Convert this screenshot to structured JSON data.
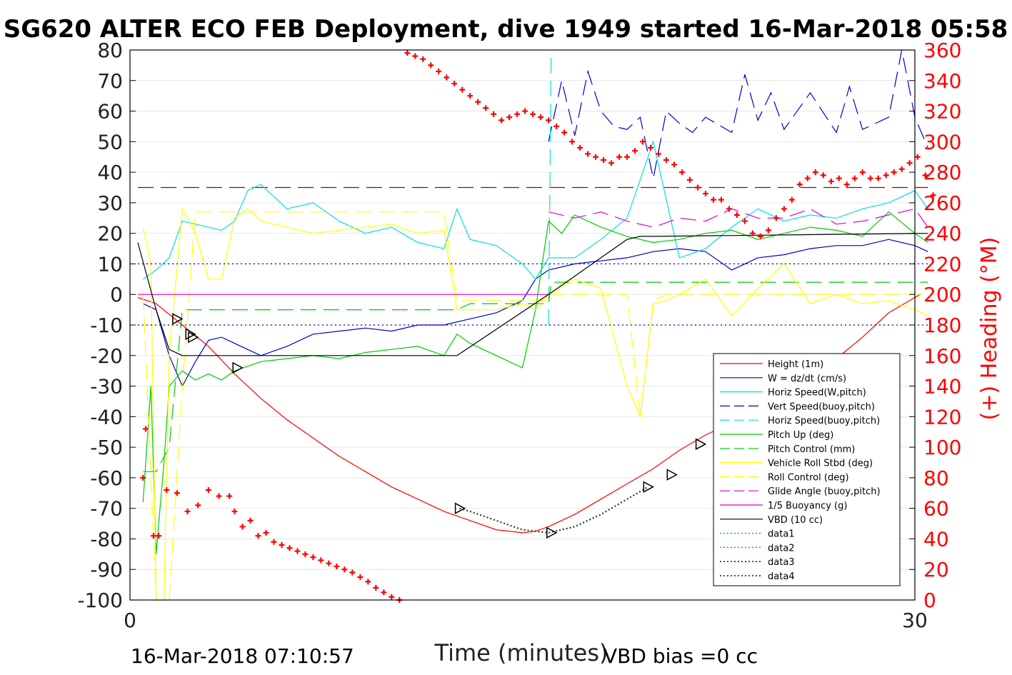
{
  "chart_data": {
    "type": "line",
    "title": "SG620 ALTER ECO FEB Deployment, dive 1949 started 16-Mar-2018 05:58",
    "xlabel": "Time (minutes)",
    "ylabel_right": "(+) Heading (°M)",
    "xlim": [
      0,
      30
    ],
    "ylim_left": [
      -100,
      80
    ],
    "ylim_right": [
      0,
      360
    ],
    "x_ticks": [
      "0",
      "30"
    ],
    "y_ticks_left": [
      "80",
      "70",
      "60",
      "50",
      "40",
      "30",
      "20",
      "10",
      "0",
      "-10",
      "-20",
      "-30",
      "-40",
      "-50",
      "-60",
      "-70",
      "-80",
      "-90",
      "-100"
    ],
    "y_ticks_right": [
      "360",
      "340",
      "320",
      "300",
      "280",
      "260",
      "240",
      "220",
      "200",
      "180",
      "160",
      "140",
      "120",
      "100",
      "80",
      "60",
      "40",
      "20",
      "0"
    ],
    "grid": true,
    "legend_position": "lower-right",
    "footer_left": "16-Mar-2018 07:10:57",
    "footer_right": "VBD bias =0 cc",
    "colors": {
      "height": "#ff0000",
      "w": "#0000cc",
      "horiz": "#00e0e0",
      "vert_buoy": "#0000cc",
      "horiz_buoy": "#00e0e0",
      "pitch": "#00cc00",
      "pitch_ctrl": "#00cc00",
      "roll": "#ffff00",
      "roll_ctrl": "#ffff00",
      "glide": "#dd00dd",
      "buoy": "#dd00dd",
      "vbd": "#000000",
      "heading": "#ff0000",
      "ref_dashed": "#a00000"
    },
    "series": [
      {
        "name": "Height (1m)",
        "style": "solid",
        "color": "#ff0000",
        "x": [
          0.3,
          1,
          2,
          3,
          4,
          5,
          6,
          7,
          8,
          9,
          10,
          11,
          12,
          13,
          14,
          15,
          15.5,
          16,
          17,
          18,
          19,
          20,
          21,
          22,
          23,
          24,
          25,
          26,
          27,
          28,
          29,
          30.2
        ],
        "y": [
          -1,
          -3,
          -10,
          -17,
          -26,
          -34,
          -41,
          -47,
          -53,
          -58,
          -63,
          -67,
          -71,
          -74,
          -77,
          -78,
          -77.5,
          -76,
          -72,
          -67,
          -62,
          -57,
          -51,
          -46,
          -42,
          -39,
          -34,
          -28,
          -21,
          -14,
          -6,
          0
        ]
      },
      {
        "name": "W = dz/dt (cm/s)",
        "style": "solid",
        "color": "#0000cc",
        "x": [
          0.5,
          1,
          1.5,
          2,
          2.5,
          3,
          3.5,
          4,
          5,
          6,
          7,
          8,
          9,
          10,
          11,
          12,
          13,
          14,
          15,
          15.5,
          16,
          17,
          18,
          19,
          20,
          21,
          22,
          23,
          24,
          25,
          26,
          27,
          28,
          29,
          30,
          30.5
        ],
        "y": [
          -3,
          -5,
          -20,
          -30,
          -22,
          -15,
          -14,
          -16,
          -20,
          -17,
          -13,
          -12,
          -11,
          -12,
          -10,
          -10,
          -8,
          -6,
          -2,
          5,
          8,
          10,
          11,
          12,
          14,
          15,
          14,
          8,
          12,
          13,
          15,
          16,
          16,
          18,
          16,
          14
        ]
      },
      {
        "name": "Horiz Speed(W,pitch)",
        "style": "solid",
        "color": "#00e0e0",
        "x": [
          0.5,
          1,
          1.5,
          2,
          2.5,
          3,
          3.5,
          4,
          4.5,
          5,
          6,
          7,
          8,
          9,
          10,
          11,
          12,
          12.5,
          13,
          14,
          15,
          15.5,
          16,
          17,
          18,
          19,
          20,
          21,
          22,
          23,
          24,
          25,
          26,
          27,
          28,
          29,
          30,
          30.5
        ],
        "y": [
          5,
          8,
          12,
          24,
          23,
          22,
          21,
          24,
          34,
          36,
          28,
          30,
          24,
          20,
          22,
          17,
          15,
          28,
          18,
          16,
          10,
          5,
          12,
          12,
          18,
          25,
          50,
          12,
          15,
          22,
          28,
          24,
          26,
          25,
          28,
          30,
          34,
          28
        ]
      },
      {
        "name": "Vert Speed(buoy,pitch)",
        "style": "dashed",
        "color": "#0000cc",
        "x": [
          16,
          16.5,
          17,
          17.5,
          18,
          18.5,
          19,
          19.5,
          20,
          20.5,
          21,
          21.5,
          22,
          23,
          23.5,
          24,
          24.5,
          25,
          26,
          27,
          27.5,
          28,
          29,
          29.5,
          30,
          30.5
        ],
        "y": [
          50,
          70,
          52,
          73,
          60,
          55,
          54,
          58,
          38,
          60,
          56,
          53,
          58,
          53,
          72,
          57,
          66,
          54,
          66,
          53,
          68,
          54,
          58,
          80,
          58,
          48
        ]
      },
      {
        "name": "Horiz Speed(buoy,pitch)",
        "style": "dashed",
        "color": "#00e0e0",
        "x": [
          16,
          16.1
        ],
        "y": [
          -10,
          80
        ]
      },
      {
        "name": "Pitch Up (deg)",
        "style": "solid",
        "color": "#00cc00",
        "x": [
          0.5,
          0.8,
          1,
          1.3,
          1.5,
          2,
          2.5,
          3,
          3.5,
          4,
          5,
          6,
          7,
          8,
          9,
          10,
          11,
          12,
          12.5,
          13,
          14,
          15,
          15.5,
          16,
          16.5,
          17,
          18,
          19,
          20,
          21,
          22,
          23,
          24,
          25,
          26,
          27,
          28,
          29,
          30,
          30.5
        ],
        "y": [
          -68,
          -30,
          -85,
          -55,
          -30,
          -25,
          -28,
          -26,
          -28,
          -25,
          -22,
          -21,
          -20,
          -21,
          -19,
          -18,
          -17,
          -20,
          -13,
          -16,
          -20,
          -24,
          -5,
          24,
          20,
          26,
          22,
          19,
          17,
          18,
          20,
          21,
          18,
          20,
          22,
          21,
          19,
          27,
          20,
          17
        ]
      },
      {
        "name": "Pitch Control (mm)",
        "style": "dashed",
        "color": "#00cc00",
        "x": [
          0.5,
          1,
          1.5,
          2,
          12.5,
          13,
          15.5,
          16,
          16.1,
          30.5
        ],
        "y": [
          -58,
          -58,
          -50,
          -5,
          -5,
          -3,
          -3,
          -3,
          4,
          4
        ]
      },
      {
        "name": "Vehicle Roll Stbd (deg)",
        "style": "solid",
        "color": "#ffff00",
        "x": [
          0.5,
          0.8,
          1,
          1.3,
          1.5,
          2,
          2.5,
          3,
          3.5,
          4,
          4.5,
          5,
          6,
          7,
          8,
          9,
          10,
          11,
          12,
          12.5,
          13,
          14,
          15,
          15.5,
          16,
          17,
          18,
          19,
          19.5,
          20,
          20.5,
          21,
          22,
          23,
          24,
          25,
          26,
          27,
          28,
          29,
          30,
          30.5
        ],
        "y": [
          22,
          10,
          -100,
          -100,
          -20,
          28,
          20,
          5,
          5,
          25,
          28,
          24,
          22,
          20,
          21,
          22,
          23,
          20,
          21,
          -5,
          -5,
          -5,
          -3,
          -5,
          0,
          5,
          2,
          -30,
          -40,
          -3,
          -2,
          0,
          5,
          -7,
          2,
          10,
          -3,
          0,
          -3,
          -2,
          -5,
          -7
        ]
      },
      {
        "name": "Roll Control (deg)",
        "style": "dashed",
        "color": "#ffff00",
        "x": [
          0.5,
          1,
          1.5,
          2,
          2.5,
          3,
          12,
          12.5,
          16,
          16.1,
          19,
          19.5,
          20,
          20.5,
          22,
          23,
          30.5
        ],
        "y": [
          0,
          -100,
          -100,
          -30,
          27,
          27,
          27,
          -2,
          -2,
          0,
          0,
          -40,
          -2,
          0,
          0,
          0,
          0
        ]
      },
      {
        "name": "Glide Angle (buoy,pitch)",
        "style": "dashed",
        "color": "#dd00dd",
        "x": [
          16,
          17,
          18,
          19,
          20,
          21,
          22,
          23,
          24,
          25,
          26,
          27,
          28,
          29,
          30,
          30.5
        ],
        "y": [
          27,
          25,
          27,
          24,
          22,
          25,
          24,
          28,
          25,
          25,
          28,
          23,
          24,
          26,
          28,
          22
        ]
      },
      {
        "name": "1/5 Buoyancy (g)",
        "style": "solid",
        "color": "#dd00dd",
        "x": [
          0.3,
          16
        ],
        "y": [
          0,
          0
        ]
      },
      {
        "name": "VBD (10 cc)",
        "style": "solid",
        "color": "#000000",
        "x": [
          0.3,
          1,
          1.5,
          2,
          12.5,
          16,
          17,
          18,
          19,
          19.5,
          20,
          30.5
        ],
        "y": [
          17,
          -5,
          -18,
          -20,
          -20,
          0,
          6,
          12,
          18,
          19,
          19,
          20
        ]
      },
      {
        "name": "data1",
        "style": "dotted",
        "color": "#00cc00",
        "x": [],
        "y": []
      },
      {
        "name": "data2",
        "style": "dotted",
        "color": "#00cc00",
        "x": [],
        "y": []
      },
      {
        "name": "data3",
        "style": "dotted",
        "color": "#0000aa",
        "x": [
          0.3,
          30.5
        ],
        "y": [
          10,
          10
        ]
      },
      {
        "name": "data4",
        "style": "dotted",
        "color": "#0000aa",
        "x": [
          0.3,
          30.5
        ],
        "y": [
          -10,
          -10
        ]
      }
    ],
    "reference_line": {
      "y": 35,
      "color": "#a00000",
      "style": "dashed"
    },
    "heading_points": {
      "axis": "right",
      "x": [
        0.5,
        0.6,
        0.9,
        1.1,
        1.4,
        1.8,
        2.2,
        2.6,
        3,
        3.4,
        3.8,
        4,
        4.3,
        4.6,
        4.9,
        5.2,
        5.5,
        5.8,
        6.1,
        6.4,
        6.7,
        7,
        7.3,
        7.6,
        7.9,
        8.2,
        8.5,
        8.8,
        9.1,
        9.4,
        9.7,
        10,
        10.3,
        10.6,
        10.9,
        11.2,
        11.5,
        11.8,
        12.1,
        12.4,
        12.7,
        13,
        13.3,
        13.6,
        13.9,
        14.2,
        14.5,
        14.8,
        15.1,
        15.4,
        15.7,
        16,
        16.3,
        16.6,
        16.9,
        17.2,
        17.5,
        17.8,
        18.1,
        18.4,
        18.7,
        19,
        19.3,
        19.6,
        19.9,
        20.2,
        20.5,
        20.8,
        21.1,
        21.4,
        21.7,
        22,
        22.3,
        22.6,
        22.9,
        23.2,
        23.5,
        23.8,
        24.1,
        24.4,
        24.7,
        25,
        25.3,
        25.6,
        25.9,
        26.2,
        26.5,
        26.8,
        27.1,
        27.4,
        27.7,
        28,
        28.3,
        28.6,
        28.9,
        29.2,
        29.5,
        29.8,
        30.1,
        30.4,
        30.7
      ],
      "y": [
        80,
        112,
        42,
        42,
        72,
        70,
        58,
        62,
        72,
        68,
        68,
        58,
        48,
        52,
        42,
        44,
        38,
        36,
        34,
        32,
        30,
        28,
        26,
        24,
        22,
        20,
        18,
        15,
        12,
        8,
        5,
        2,
        0,
        358,
        356,
        354,
        350,
        346,
        342,
        338,
        334,
        330,
        326,
        322,
        318,
        314,
        316,
        318,
        320,
        318,
        316,
        314,
        310,
        306,
        300,
        296,
        292,
        290,
        288,
        286,
        290,
        290,
        294,
        300,
        296,
        292,
        288,
        285,
        280,
        275,
        270,
        266,
        262,
        262,
        256,
        252,
        248,
        240,
        238,
        242,
        250,
        256,
        262,
        272,
        276,
        280,
        278,
        274,
        276,
        272,
        276,
        280,
        276,
        276,
        278,
        280,
        282,
        286,
        290,
        278,
        265
      ]
    },
    "triangle_markers": {
      "x": [
        1.8,
        2.3,
        2.4,
        4.1,
        12.6,
        16.1,
        19.8,
        20.7,
        21.8,
        22.8,
        23.4,
        23.5,
        24.5
      ],
      "y": [
        -8,
        -13,
        -14,
        -24,
        -70,
        -78,
        -63,
        -59,
        -49,
        -47,
        -43,
        -42,
        -41
      ]
    }
  }
}
